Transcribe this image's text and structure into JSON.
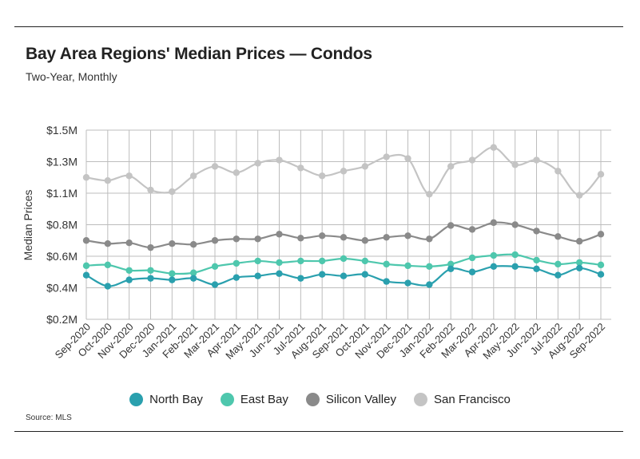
{
  "header": {
    "title": "Bay Area Regions' Median Prices — Condos",
    "subtitle": "Two-Year, Monthly"
  },
  "footer": {
    "source": "Source:  MLS"
  },
  "colors": {
    "north_bay": "#2aa0ae",
    "east_bay": "#4ec7ad",
    "silicon_valley": "#8a8a8a",
    "san_francisco": "#c4c4c4",
    "grid": "#bdbdbd"
  },
  "chart_data": {
    "type": "line",
    "title": "Bay Area Regions' Median Prices — Condos",
    "subtitle": "Two-Year, Monthly",
    "xlabel": "",
    "ylabel": "Median Prices",
    "ylim": [
      200000,
      1500000
    ],
    "yticks": [
      200000,
      400000,
      600000,
      800000,
      1100000,
      1300000,
      1500000
    ],
    "ytick_labels": [
      "$0.2M",
      "$0.4M",
      "$0.6M",
      "$0.8M",
      "$1.1M",
      "$1.3M",
      "$1.5M"
    ],
    "grid": true,
    "legend_position": "bottom",
    "categories": [
      "Sep-2020",
      "Oct-2020",
      "Nov-2020",
      "Dec-2020",
      "Jan-2021",
      "Feb-2021",
      "Mar-2021",
      "Apr-2021",
      "May-2021",
      "Jun-2021",
      "Jul-2021",
      "Aug-2021",
      "Sep-2021",
      "Oct-2021",
      "Nov-2021",
      "Dec-2021",
      "Jan-2022",
      "Feb-2022",
      "Mar-2022",
      "Apr-2022",
      "May-2022",
      "Jun-2022",
      "Jul-2022",
      "Aug-2022",
      "Sep-2022"
    ],
    "series": [
      {
        "name": "North Bay",
        "color": "#2aa0ae",
        "values": [
          480000,
          410000,
          450000,
          460000,
          450000,
          460000,
          420000,
          465000,
          475000,
          490000,
          460000,
          485000,
          475000,
          485000,
          440000,
          430000,
          420000,
          520000,
          500000,
          535000,
          535000,
          520000,
          480000,
          525000,
          485000
        ]
      },
      {
        "name": "East Bay",
        "color": "#4ec7ad",
        "values": [
          540000,
          545000,
          510000,
          510000,
          490000,
          495000,
          535000,
          555000,
          570000,
          560000,
          570000,
          570000,
          585000,
          570000,
          550000,
          540000,
          535000,
          550000,
          590000,
          605000,
          610000,
          575000,
          550000,
          560000,
          545000
        ]
      },
      {
        "name": "Silicon Valley",
        "color": "#8a8a8a",
        "values": [
          700000,
          680000,
          685000,
          655000,
          680000,
          675000,
          700000,
          710000,
          710000,
          740000,
          715000,
          730000,
          720000,
          700000,
          720000,
          730000,
          710000,
          795000,
          770000,
          820000,
          800000,
          760000,
          725000,
          695000,
          740000
        ]
      },
      {
        "name": "San Francisco",
        "color": "#c4c4c4",
        "values": [
          1200000,
          1180000,
          1210000,
          1120000,
          1110000,
          1210000,
          1270000,
          1230000,
          1290000,
          1310000,
          1260000,
          1210000,
          1240000,
          1270000,
          1330000,
          1320000,
          1090000,
          1270000,
          1310000,
          1390000,
          1280000,
          1310000,
          1240000,
          1080000,
          1220000
        ]
      }
    ]
  }
}
